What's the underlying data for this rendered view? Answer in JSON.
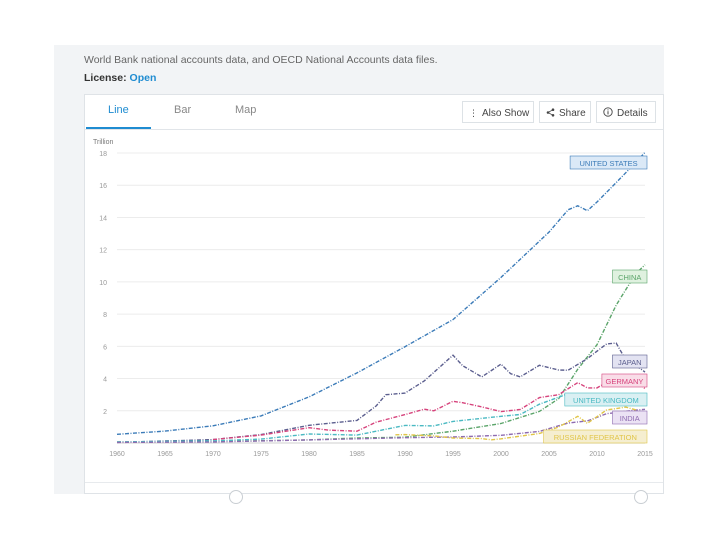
{
  "source_text": "World Bank national accounts data, and OECD National Accounts data files.",
  "license": {
    "label": "License:",
    "value": "Open"
  },
  "tabs": [
    {
      "label": "Line"
    },
    {
      "label": "Bar"
    },
    {
      "label": "Map"
    }
  ],
  "toolbar": {
    "also_show": "Also Show",
    "share": "Share",
    "details": "Details"
  },
  "colors": {
    "accent": "#1f8cd1"
  },
  "chart_data": {
    "type": "line",
    "ylabel": "Trillion",
    "ylim": [
      0,
      18
    ],
    "xlim": [
      1960,
      2015
    ],
    "yticks": [
      2,
      4,
      6,
      8,
      10,
      12,
      14,
      16,
      18
    ],
    "xticks": [
      1960,
      1965,
      1970,
      1975,
      1980,
      1985,
      1990,
      1995,
      2000,
      2005,
      2010,
      2015
    ],
    "grid": true,
    "series": [
      {
        "name": "UNITED STATES",
        "color": "#3b7bb8",
        "label_fill": "#dbe9f7",
        "points": [
          [
            1960,
            0.54
          ],
          [
            1965,
            0.74
          ],
          [
            1970,
            1.07
          ],
          [
            1975,
            1.68
          ],
          [
            1980,
            2.86
          ],
          [
            1985,
            4.35
          ],
          [
            1990,
            5.98
          ],
          [
            1995,
            7.66
          ],
          [
            2000,
            10.28
          ],
          [
            2005,
            13.09
          ],
          [
            2007,
            14.48
          ],
          [
            2008,
            14.72
          ],
          [
            2009,
            14.42
          ],
          [
            2010,
            14.96
          ],
          [
            2012,
            16.16
          ],
          [
            2014,
            17.39
          ],
          [
            2015,
            18.04
          ]
        ]
      },
      {
        "name": "CHINA",
        "color": "#5aa469",
        "label_fill": "#dff1df",
        "points": [
          [
            1960,
            0.06
          ],
          [
            1970,
            0.09
          ],
          [
            1980,
            0.19
          ],
          [
            1985,
            0.31
          ],
          [
            1990,
            0.36
          ],
          [
            1995,
            0.73
          ],
          [
            2000,
            1.21
          ],
          [
            2004,
            1.96
          ],
          [
            2006,
            2.75
          ],
          [
            2008,
            4.59
          ],
          [
            2010,
            6.1
          ],
          [
            2012,
            8.56
          ],
          [
            2014,
            10.48
          ],
          [
            2015,
            11.06
          ]
        ]
      },
      {
        "name": "JAPAN",
        "color": "#5b5e8e",
        "label_fill": "#e3e3f2",
        "points": [
          [
            1960,
            0.04
          ],
          [
            1970,
            0.21
          ],
          [
            1975,
            0.52
          ],
          [
            1980,
            1.1
          ],
          [
            1985,
            1.4
          ],
          [
            1987,
            2.3
          ],
          [
            1988,
            3.0
          ],
          [
            1990,
            3.1
          ],
          [
            1992,
            3.85
          ],
          [
            1995,
            5.45
          ],
          [
            1996,
            4.8
          ],
          [
            1998,
            4.1
          ],
          [
            2000,
            4.9
          ],
          [
            2001,
            4.3
          ],
          [
            2002,
            4.1
          ],
          [
            2004,
            4.82
          ],
          [
            2006,
            4.53
          ],
          [
            2007,
            4.52
          ],
          [
            2009,
            5.24
          ],
          [
            2010,
            5.7
          ],
          [
            2011,
            6.15
          ],
          [
            2012,
            6.2
          ],
          [
            2013,
            5.15
          ],
          [
            2014,
            4.85
          ],
          [
            2015,
            4.4
          ]
        ]
      },
      {
        "name": "GERMANY",
        "color": "#d6437c",
        "label_fill": "#f9dde8",
        "points": [
          [
            1970,
            0.21
          ],
          [
            1975,
            0.49
          ],
          [
            1980,
            0.95
          ],
          [
            1982,
            0.8
          ],
          [
            1985,
            0.73
          ],
          [
            1987,
            1.3
          ],
          [
            1990,
            1.76
          ],
          [
            1992,
            2.1
          ],
          [
            1993,
            2.0
          ],
          [
            1995,
            2.59
          ],
          [
            1996,
            2.5
          ],
          [
            1998,
            2.24
          ],
          [
            2000,
            1.95
          ],
          [
            2002,
            2.08
          ],
          [
            2004,
            2.82
          ],
          [
            2006,
            3.0
          ],
          [
            2008,
            3.75
          ],
          [
            2009,
            3.42
          ],
          [
            2010,
            3.42
          ],
          [
            2011,
            3.76
          ],
          [
            2012,
            3.54
          ],
          [
            2014,
            3.89
          ],
          [
            2015,
            3.37
          ]
        ]
      },
      {
        "name": "UNITED KINGDOM",
        "color": "#4ab9c2",
        "label_fill": "#daf0f3",
        "points": [
          [
            1960,
            0.07
          ],
          [
            1970,
            0.13
          ],
          [
            1975,
            0.24
          ],
          [
            1980,
            0.56
          ],
          [
            1985,
            0.49
          ],
          [
            1990,
            1.09
          ],
          [
            1993,
            1.06
          ],
          [
            1995,
            1.34
          ],
          [
            2000,
            1.66
          ],
          [
            2002,
            1.77
          ],
          [
            2004,
            2.41
          ],
          [
            2007,
            3.06
          ],
          [
            2009,
            2.38
          ],
          [
            2011,
            2.59
          ],
          [
            2014,
            3.0
          ],
          [
            2015,
            2.86
          ]
        ]
      },
      {
        "name": "INDIA",
        "color": "#8e6bb0",
        "label_fill": "#ebe2f4",
        "points": [
          [
            1960,
            0.04
          ],
          [
            1970,
            0.06
          ],
          [
            1980,
            0.19
          ],
          [
            1990,
            0.33
          ],
          [
            1995,
            0.37
          ],
          [
            2000,
            0.48
          ],
          [
            2004,
            0.72
          ],
          [
            2007,
            1.24
          ],
          [
            2009,
            1.37
          ],
          [
            2011,
            1.82
          ],
          [
            2014,
            2.04
          ],
          [
            2015,
            2.09
          ]
        ]
      },
      {
        "name": "RUSSIAN FEDERATION",
        "color": "#e0c548",
        "label_fill": "#f5eed0",
        "points": [
          [
            1989,
            0.51
          ],
          [
            1990,
            0.52
          ],
          [
            1993,
            0.44
          ],
          [
            1995,
            0.31
          ],
          [
            1998,
            0.27
          ],
          [
            1999,
            0.2
          ],
          [
            2000,
            0.26
          ],
          [
            2004,
            0.59
          ],
          [
            2006,
            0.99
          ],
          [
            2008,
            1.66
          ],
          [
            2009,
            1.22
          ],
          [
            2011,
            2.05
          ],
          [
            2013,
            2.23
          ],
          [
            2014,
            2.06
          ],
          [
            2015,
            1.33
          ]
        ]
      }
    ]
  }
}
